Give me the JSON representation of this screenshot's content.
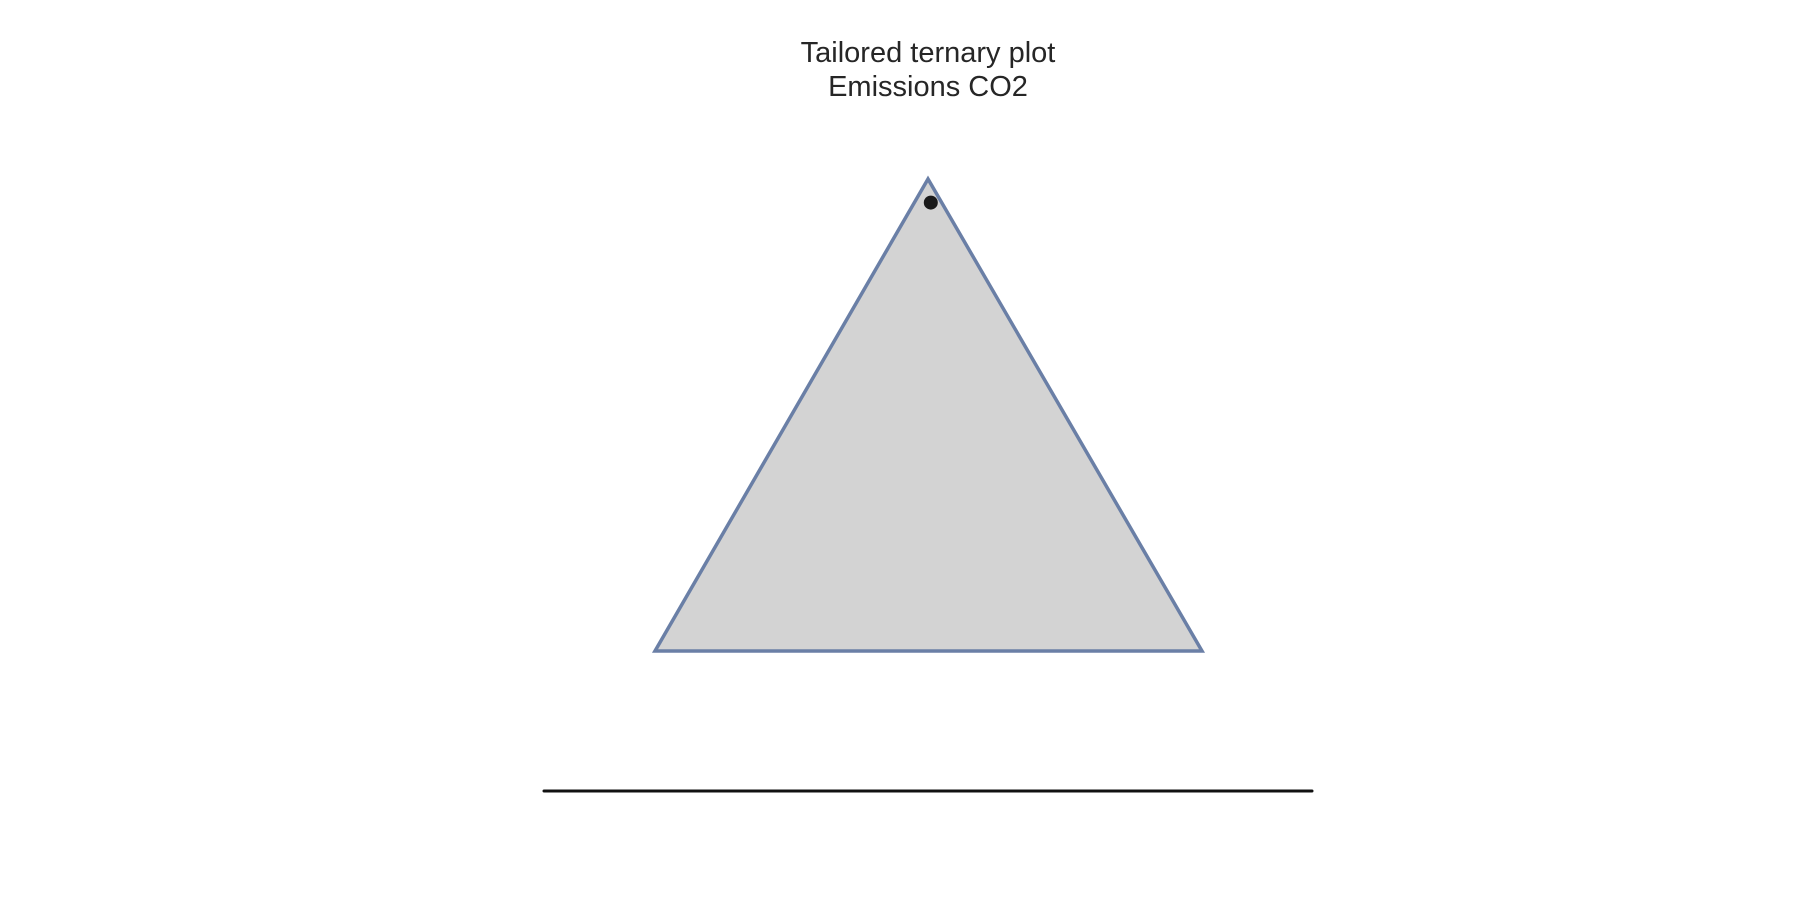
{
  "chart_data": {
    "type": "scatter",
    "plot_kind": "ternary",
    "title": "Tailored ternary plot",
    "subtitle": "Emissions CO2",
    "axis_ticks": "none",
    "grid": false,
    "legend": "none",
    "points": [
      {
        "a": 0.95,
        "b": 0.02,
        "c": 0.03
      }
    ],
    "colors": {
      "triangle_fill": "#d3d3d3",
      "triangle_edge": "#6a7fa6",
      "point": "#1a1a1a",
      "baseline": "#111111",
      "title": "#262626"
    }
  }
}
